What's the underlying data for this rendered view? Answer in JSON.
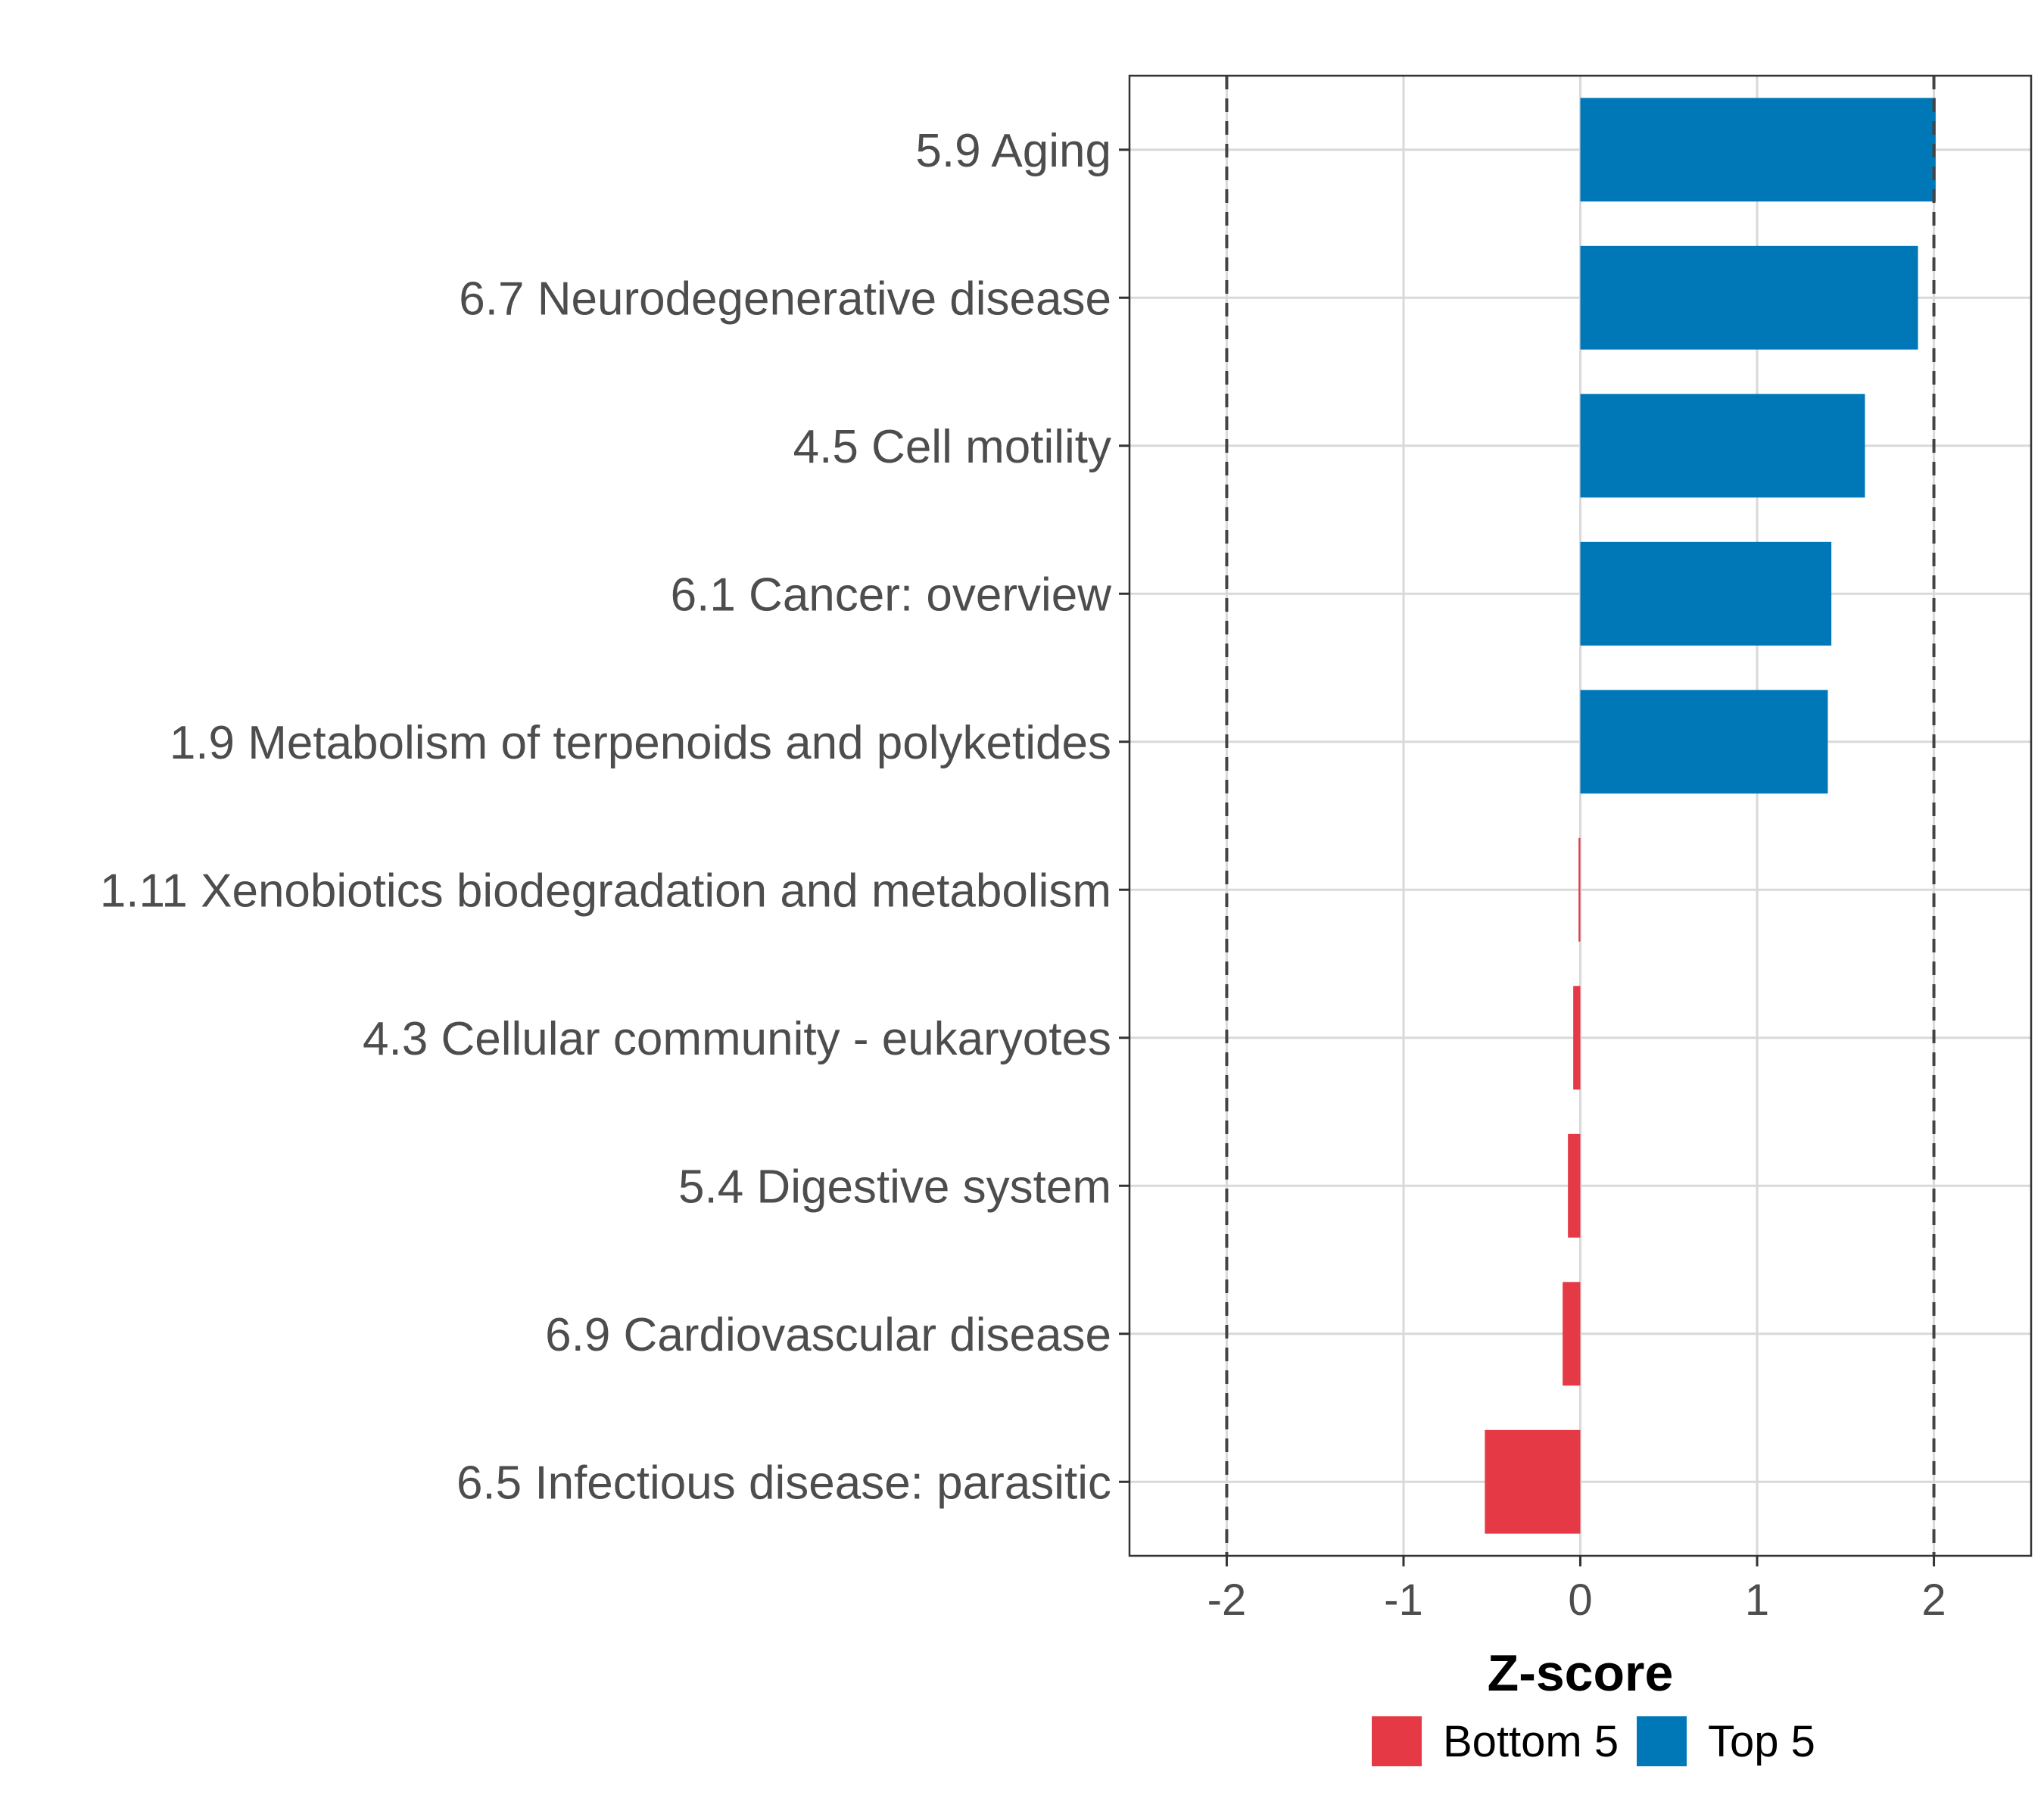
{
  "chart_data": {
    "type": "bar",
    "orientation": "horizontal",
    "xlabel": "Z-score",
    "xlim": [
      -2.55,
      2.55
    ],
    "xticks": [
      -2,
      -1,
      0,
      1,
      2
    ],
    "xtick_labels": [
      "-2",
      "-1",
      "0",
      "1",
      "2"
    ],
    "reference_lines": [
      -2,
      2
    ],
    "categories": [
      "5.9 Aging",
      "6.7 Neurodegenerative disease",
      "4.5 Cell motility",
      "6.1 Cancer: overview",
      "1.9 Metabolism of terpenoids and polyketides",
      "1.11 Xenobiotics biodegradation and metabolism",
      "4.3 Cellular community - eukaryotes",
      "5.4 Digestive system",
      "6.9 Cardiovascular disease",
      "6.5 Infectious disease: parasitic"
    ],
    "values": [
      2.01,
      1.91,
      1.61,
      1.42,
      1.4,
      -0.01,
      -0.04,
      -0.07,
      -0.1,
      -0.54
    ],
    "groups": [
      "Top 5",
      "Top 5",
      "Top 5",
      "Top 5",
      "Top 5",
      "Bottom 5",
      "Bottom 5",
      "Bottom 5",
      "Bottom 5",
      "Bottom 5"
    ],
    "legend": [
      {
        "name": "Bottom 5",
        "color": "#e63946"
      },
      {
        "name": "Top 5",
        "color": "#0077b6"
      }
    ],
    "legend_position": "bottom",
    "grid": true
  }
}
